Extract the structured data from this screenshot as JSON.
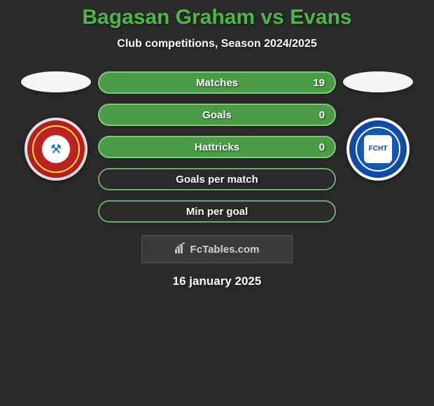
{
  "title": "Bagasan Graham vs Evans",
  "subtitle": "Club competitions, Season 2024/2025",
  "date": "16 january 2025",
  "watermark": "FcTables.com",
  "colors": {
    "title": "#4db848",
    "bar_fill": "#4a9c47",
    "bar_border": "#7ec97a",
    "bar_empty_border": "#6fa86c",
    "background": "#2a2a2a"
  },
  "left_team": {
    "name": "Dagenham & Redbridge",
    "badge_color": "#b71c1c"
  },
  "right_team": {
    "name": "FC Halifax Town",
    "badge_color": "#0d47a1",
    "badge_text": "FCHT"
  },
  "bars": [
    {
      "label": "Matches",
      "value": "19",
      "filled": true
    },
    {
      "label": "Goals",
      "value": "0",
      "filled": true
    },
    {
      "label": "Hattricks",
      "value": "0",
      "filled": true
    },
    {
      "label": "Goals per match",
      "value": "",
      "filled": false
    },
    {
      "label": "Min per goal",
      "value": "",
      "filled": false
    }
  ]
}
